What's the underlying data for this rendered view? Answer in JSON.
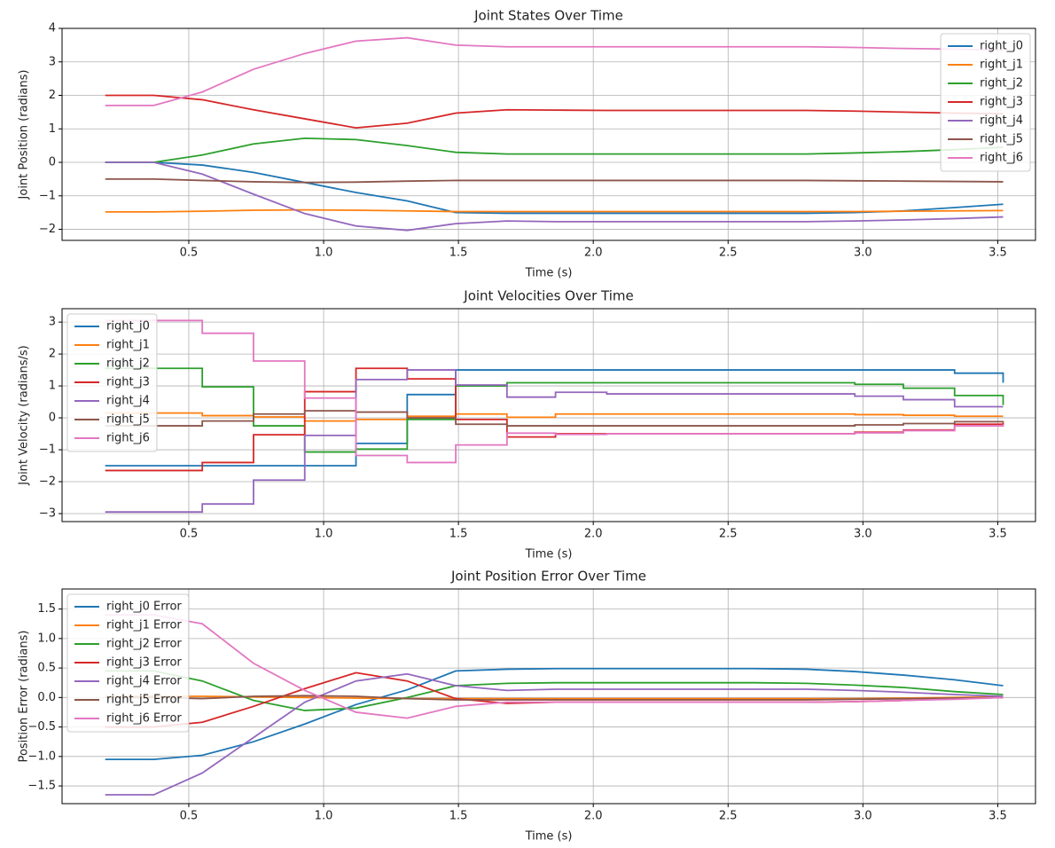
{
  "chart_data": [
    {
      "type": "line",
      "title": "Joint States Over Time",
      "xlabel": "Time (s)",
      "ylabel": "Joint Position (radians)",
      "x": [
        0.19,
        0.37,
        0.55,
        0.74,
        0.93,
        1.12,
        1.31,
        1.49,
        1.68,
        1.86,
        2.05,
        2.23,
        2.42,
        2.6,
        2.79,
        2.97,
        3.15,
        3.34,
        3.52
      ],
      "xlim": [
        0.03,
        3.64
      ],
      "xticks": [
        0.5,
        {
          "value": 1,
          "label": "1.0"
        },
        1.5,
        {
          "value": 2,
          "label": "2.0"
        },
        2.5,
        {
          "value": 3,
          "label": "3.0"
        },
        3.5
      ],
      "ylim": [
        -2.33,
        4
      ],
      "yticks": [
        {
          "value": -2,
          "label": "−2"
        },
        {
          "value": -1,
          "label": "−1"
        },
        0,
        1,
        2,
        3,
        4
      ],
      "grid": true,
      "legend": "upper right",
      "series": [
        {
          "name": "right_j0",
          "color": "#1f77b4",
          "values": [
            0,
            0,
            -0.08,
            -0.3,
            -0.6,
            -0.9,
            -1.15,
            -1.5,
            -1.52,
            -1.52,
            -1.52,
            -1.52,
            -1.52,
            -1.52,
            -1.52,
            -1.5,
            -1.45,
            -1.35,
            -1.25
          ]
        },
        {
          "name": "right_j1",
          "color": "#ff7f0e",
          "values": [
            -1.48,
            -1.48,
            -1.46,
            -1.43,
            -1.42,
            -1.43,
            -1.45,
            -1.47,
            -1.47,
            -1.47,
            -1.47,
            -1.47,
            -1.47,
            -1.47,
            -1.47,
            -1.47,
            -1.46,
            -1.45,
            -1.44
          ]
        },
        {
          "name": "right_j2",
          "color": "#2ca02c",
          "values": [
            0,
            0,
            0.22,
            0.55,
            0.72,
            0.68,
            0.5,
            0.3,
            0.25,
            0.25,
            0.25,
            0.25,
            0.25,
            0.25,
            0.25,
            0.28,
            0.32,
            0.38,
            0.45
          ]
        },
        {
          "name": "right_j3",
          "color": "#d62728",
          "values": [
            2,
            2,
            1.87,
            1.57,
            1.3,
            1.03,
            1.17,
            1.47,
            1.57,
            1.56,
            1.55,
            1.55,
            1.55,
            1.55,
            1.55,
            1.53,
            1.5,
            1.47,
            1.45
          ]
        },
        {
          "name": "right_j4",
          "color": "#9467bd",
          "values": [
            0,
            0,
            -0.35,
            -0.95,
            -1.53,
            -1.9,
            -2.03,
            -1.83,
            -1.75,
            -1.77,
            -1.77,
            -1.77,
            -1.77,
            -1.77,
            -1.77,
            -1.75,
            -1.72,
            -1.68,
            -1.63
          ]
        },
        {
          "name": "right_j5",
          "color": "#8c564b",
          "values": [
            -0.5,
            -0.5,
            -0.54,
            -0.58,
            -0.6,
            -0.59,
            -0.56,
            -0.54,
            -0.54,
            -0.54,
            -0.54,
            -0.54,
            -0.54,
            -0.54,
            -0.54,
            -0.55,
            -0.56,
            -0.57,
            -0.58
          ]
        },
        {
          "name": "right_j6",
          "color": "#e377c2",
          "values": [
            1.7,
            1.7,
            2.1,
            2.78,
            3.25,
            3.62,
            3.72,
            3.5,
            3.45,
            3.45,
            3.45,
            3.45,
            3.45,
            3.45,
            3.45,
            3.43,
            3.4,
            3.38,
            3.35
          ]
        }
      ]
    },
    {
      "type": "line",
      "drawstyle": "steps-post",
      "title": "Joint Velocities Over Time",
      "xlabel": "Time (s)",
      "ylabel": "Joint Velocity (radians/s)",
      "x": [
        0.19,
        0.37,
        0.55,
        0.74,
        0.93,
        1.12,
        1.31,
        1.49,
        1.68,
        1.86,
        2.05,
        2.23,
        2.42,
        2.6,
        2.79,
        2.97,
        3.15,
        3.34,
        3.52
      ],
      "xlim": [
        0.03,
        3.64
      ],
      "xticks": [
        0.5,
        {
          "value": 1,
          "label": "1.0"
        },
        1.5,
        {
          "value": 2,
          "label": "2.0"
        },
        2.5,
        {
          "value": 3,
          "label": "3.0"
        },
        3.5
      ],
      "ylim": [
        -3.25,
        3.42
      ],
      "yticks": [
        {
          "value": -3,
          "label": "−3"
        },
        {
          "value": -2,
          "label": "−2"
        },
        {
          "value": -1,
          "label": "−1"
        },
        0,
        1,
        2,
        3
      ],
      "grid": true,
      "legend": "upper left",
      "series": [
        {
          "name": "right_j0",
          "color": "#1f77b4",
          "values": [
            -1.5,
            -1.5,
            -1.5,
            -1.5,
            -1.5,
            -0.8,
            0.73,
            1.5,
            1.5,
            1.5,
            1.5,
            1.5,
            1.5,
            1.5,
            1.5,
            1.5,
            1.5,
            1.4,
            1.1
          ]
        },
        {
          "name": "right_j1",
          "color": "#ff7f0e",
          "values": [
            0.15,
            0.15,
            0.07,
            0.03,
            -0.1,
            -0.05,
            0.05,
            0.12,
            0.02,
            0.12,
            0.12,
            0.12,
            0.12,
            0.12,
            0.12,
            0.1,
            0.08,
            0.05,
            0.05
          ]
        },
        {
          "name": "right_j2",
          "color": "#2ca02c",
          "values": [
            1.55,
            1.55,
            0.97,
            -0.25,
            -1.07,
            -0.98,
            -0.05,
            1.0,
            1.1,
            1.1,
            1.1,
            1.1,
            1.1,
            1.1,
            1.1,
            1.05,
            0.93,
            0.7,
            0.4
          ]
        },
        {
          "name": "right_j3",
          "color": "#d62728",
          "values": [
            -1.65,
            -1.65,
            -1.4,
            -0.53,
            0.82,
            1.55,
            1.22,
            -0.05,
            -0.6,
            -0.5,
            -0.5,
            -0.5,
            -0.5,
            -0.5,
            -0.5,
            -0.45,
            -0.38,
            -0.2,
            -0.15
          ]
        },
        {
          "name": "right_j4",
          "color": "#9467bd",
          "values": [
            -2.95,
            -2.95,
            -2.7,
            -1.95,
            -0.55,
            1.2,
            1.5,
            1.03,
            0.65,
            0.8,
            0.75,
            0.75,
            0.75,
            0.75,
            0.75,
            0.68,
            0.57,
            0.35,
            0.35
          ]
        },
        {
          "name": "right_j5",
          "color": "#8c564b",
          "values": [
            -0.25,
            -0.25,
            -0.1,
            0.12,
            0.22,
            0.18,
            0.0,
            -0.2,
            -0.25,
            -0.25,
            -0.25,
            -0.25,
            -0.25,
            -0.25,
            -0.25,
            -0.22,
            -0.18,
            -0.12,
            -0.1
          ]
        },
        {
          "name": "right_j6",
          "color": "#e377c2",
          "values": [
            3.05,
            3.05,
            2.65,
            1.78,
            0.62,
            -1.18,
            -1.4,
            -0.85,
            -0.48,
            -0.52,
            -0.5,
            -0.5,
            -0.5,
            -0.5,
            -0.5,
            -0.47,
            -0.4,
            -0.25,
            -0.2
          ]
        }
      ]
    },
    {
      "type": "line",
      "title": "Joint Position Error Over Time",
      "xlabel": "Time (s)",
      "ylabel": "Position Error (radians)",
      "x": [
        0.19,
        0.37,
        0.55,
        0.74,
        0.93,
        1.12,
        1.31,
        1.49,
        1.68,
        1.86,
        2.05,
        2.23,
        2.42,
        2.6,
        2.79,
        2.97,
        3.15,
        3.34,
        3.52
      ],
      "xlim": [
        0.03,
        3.64
      ],
      "xticks": [
        0.5,
        {
          "value": 1,
          "label": "1.0"
        },
        1.5,
        {
          "value": 2,
          "label": "2.0"
        },
        2.5,
        {
          "value": 3,
          "label": "3.0"
        },
        3.5
      ],
      "ylim": [
        -1.8,
        1.84
      ],
      "yticks": [
        {
          "value": -1.5,
          "label": "−1.5"
        },
        {
          "value": -1,
          "label": "−1.0"
        },
        {
          "value": -0.5,
          "label": "−0.5"
        },
        {
          "value": 0,
          "label": "0.0"
        },
        0.5,
        {
          "value": 1,
          "label": "1.0"
        },
        1.5
      ],
      "grid": true,
      "legend": "upper left",
      "series": [
        {
          "name": "right_j0 Error",
          "color": "#1f77b4",
          "values": [
            -1.05,
            -1.05,
            -0.98,
            -0.75,
            -0.45,
            -0.12,
            0.13,
            0.45,
            0.48,
            0.49,
            0.49,
            0.49,
            0.49,
            0.49,
            0.48,
            0.44,
            0.38,
            0.3,
            0.2
          ]
        },
        {
          "name": "right_j1 Error",
          "color": "#ff7f0e",
          "values": [
            0.02,
            0.02,
            0.02,
            0.01,
            0.0,
            -0.01,
            -0.02,
            -0.02,
            -0.02,
            -0.02,
            -0.02,
            -0.02,
            -0.02,
            -0.02,
            -0.02,
            -0.02,
            -0.01,
            0,
            0.01
          ]
        },
        {
          "name": "right_j2 Error",
          "color": "#2ca02c",
          "values": [
            0.45,
            0.45,
            0.28,
            -0.05,
            -0.22,
            -0.18,
            0.0,
            0.2,
            0.24,
            0.25,
            0.25,
            0.25,
            0.25,
            0.25,
            0.24,
            0.21,
            0.17,
            0.1,
            0.05
          ]
        },
        {
          "name": "right_j3 Error",
          "color": "#d62728",
          "values": [
            -0.5,
            -0.5,
            -0.42,
            -0.15,
            0.15,
            0.42,
            0.28,
            -0.02,
            -0.1,
            -0.08,
            -0.08,
            -0.08,
            -0.08,
            -0.08,
            -0.08,
            -0.07,
            -0.05,
            -0.02,
            0
          ]
        },
        {
          "name": "right_j4 Error",
          "color": "#9467bd",
          "values": [
            -1.65,
            -1.65,
            -1.28,
            -0.68,
            -0.08,
            0.28,
            0.4,
            0.2,
            0.12,
            0.14,
            0.14,
            0.14,
            0.14,
            0.14,
            0.14,
            0.12,
            0.09,
            0.05,
            0.02
          ]
        },
        {
          "name": "right_j5 Error",
          "color": "#8c564b",
          "values": [
            0,
            0,
            -0.02,
            0.02,
            0.03,
            0.02,
            -0.02,
            -0.04,
            -0.04,
            -0.04,
            -0.04,
            -0.04,
            -0.04,
            -0.04,
            -0.04,
            -0.03,
            -0.02,
            -0.01,
            0
          ]
        },
        {
          "name": "right_j6 Error",
          "color": "#e377c2",
          "values": [
            1.4,
            1.4,
            1.25,
            0.58,
            0.12,
            -0.25,
            -0.35,
            -0.15,
            -0.08,
            -0.08,
            -0.08,
            -0.08,
            -0.08,
            -0.08,
            -0.08,
            -0.07,
            -0.05,
            -0.03,
            0
          ]
        }
      ]
    }
  ]
}
